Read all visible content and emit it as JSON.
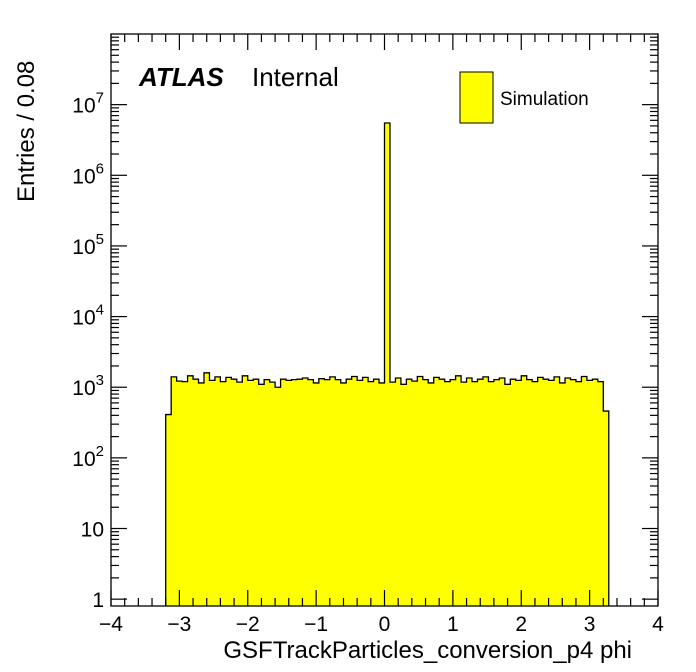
{
  "chart_data": {
    "type": "bar",
    "xlabel": "GSFTrackParticles_conversion_p4 phi",
    "ylabel": "Entries / 0.08",
    "xlim": [
      -4,
      4
    ],
    "ylim": [
      0.8,
      100000000
    ],
    "yscale": "log",
    "grid": false,
    "bin_width": 0.08,
    "atlas_label": {
      "bold": "ATLAS",
      "text": "Internal"
    },
    "legend": {
      "placement": "top-right",
      "entries": [
        {
          "name": "Simulation",
          "color": "#ffff00"
        }
      ]
    },
    "x_ticks": [
      {
        "value": -4,
        "label": "−4"
      },
      {
        "value": -3,
        "label": "−3"
      },
      {
        "value": -2,
        "label": "−2"
      },
      {
        "value": -1,
        "label": "−1"
      },
      {
        "value": 0,
        "label": "0"
      },
      {
        "value": 1,
        "label": "1"
      },
      {
        "value": 2,
        "label": "2"
      },
      {
        "value": 3,
        "label": "3"
      },
      {
        "value": 4,
        "label": "4"
      }
    ],
    "y_ticks": [
      {
        "value": 1,
        "base": "1",
        "exp": ""
      },
      {
        "value": 10,
        "base": "10",
        "exp": ""
      },
      {
        "value": 100,
        "base": "10",
        "exp": "2"
      },
      {
        "value": 1000,
        "base": "10",
        "exp": "3"
      },
      {
        "value": 10000,
        "base": "10",
        "exp": "4"
      },
      {
        "value": 100000,
        "base": "10",
        "exp": "5"
      },
      {
        "value": 1000000,
        "base": "10",
        "exp": "6"
      },
      {
        "value": 10000000,
        "base": "10",
        "exp": "7"
      }
    ],
    "fill_color": "#ffff00",
    "bins": {
      "x_low": [
        -3.2,
        -3.12,
        -3.04,
        -2.96,
        -2.88,
        -2.8,
        -2.72,
        -2.64,
        -2.56,
        -2.48,
        -2.4,
        -2.32,
        -2.24,
        -2.16,
        -2.08,
        -2.0,
        -1.92,
        -1.84,
        -1.76,
        -1.68,
        -1.6,
        -1.52,
        -1.44,
        -1.36,
        -1.28,
        -1.2,
        -1.12,
        -1.04,
        -0.96,
        -0.88,
        -0.8,
        -0.72,
        -0.64,
        -0.56,
        -0.48,
        -0.4,
        -0.32,
        -0.24,
        -0.16,
        -0.08,
        0.0,
        0.08,
        0.16,
        0.24,
        0.32,
        0.4,
        0.48,
        0.56,
        0.64,
        0.72,
        0.8,
        0.88,
        0.96,
        1.04,
        1.12,
        1.2,
        1.28,
        1.36,
        1.44,
        1.52,
        1.6,
        1.68,
        1.76,
        1.84,
        1.92,
        2.0,
        2.08,
        2.16,
        2.24,
        2.32,
        2.4,
        2.48,
        2.56,
        2.64,
        2.72,
        2.8,
        2.88,
        2.96,
        3.04,
        3.12,
        3.2
      ],
      "values": [
        410,
        1400,
        1220,
        1200,
        1450,
        1300,
        1150,
        1600,
        1250,
        1400,
        1200,
        1380,
        1300,
        1180,
        1450,
        1250,
        1300,
        1100,
        1280,
        1180,
        1000,
        1300,
        1250,
        1280,
        1300,
        1350,
        1280,
        1150,
        1320,
        1280,
        1400,
        1280,
        1150,
        1300,
        1420,
        1250,
        1380,
        1200,
        1300,
        1150,
        5500000,
        1180,
        1350,
        1100,
        1300,
        1220,
        1420,
        1280,
        1150,
        1380,
        1300,
        1200,
        1280,
        1450,
        1180,
        1350,
        1200,
        1300,
        1400,
        1200,
        1280,
        1350,
        1100,
        1300,
        1250,
        1450,
        1280,
        1200,
        1380,
        1300,
        1250,
        1400,
        1150,
        1350,
        1280,
        1200,
        1420,
        1250,
        1300,
        1200,
        460
      ]
    }
  }
}
